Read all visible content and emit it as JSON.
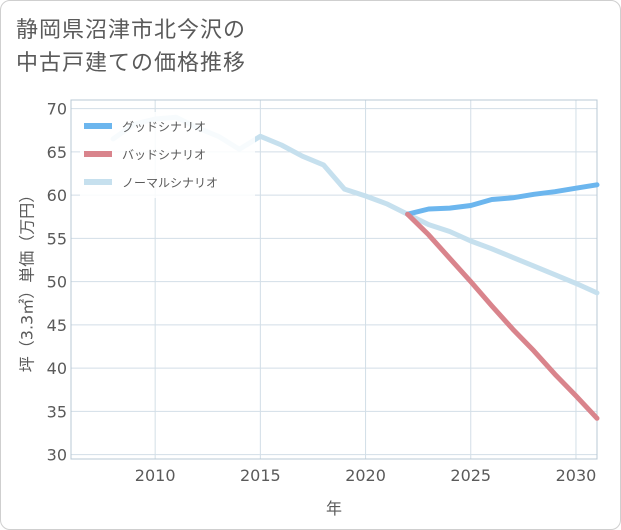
{
  "title_lines": [
    "静岡県沼津市北今沢の",
    "中古戸建ての価格推移"
  ],
  "chart_data": {
    "type": "line",
    "xlabel": "年",
    "ylabel": "坪（3.3㎡）単価（万円）",
    "xlim": [
      2006,
      2031
    ],
    "ylim": [
      29.5,
      71
    ],
    "xticks": [
      2010,
      2015,
      2020,
      2025,
      2030
    ],
    "yticks": [
      30,
      35,
      40,
      45,
      50,
      55,
      60,
      65,
      70
    ],
    "grid": true,
    "legend_position": "top-left",
    "series": [
      {
        "name": "グッドシナリオ",
        "color": "#6cb6ee",
        "x": [
          2022,
          2023,
          2024,
          2025,
          2026,
          2027,
          2028,
          2029,
          2030,
          2031
        ],
        "y": [
          57.8,
          58.4,
          58.5,
          58.8,
          59.5,
          59.7,
          60.1,
          60.4,
          60.8,
          61.2
        ]
      },
      {
        "name": "バッドシナリオ",
        "color": "#d9848c",
        "x": [
          2022,
          2023,
          2024,
          2025,
          2026,
          2027,
          2028,
          2029,
          2030,
          2031
        ],
        "y": [
          57.8,
          55.4,
          52.7,
          50.0,
          47.2,
          44.5,
          42.0,
          39.3,
          36.8,
          34.2
        ]
      },
      {
        "name": "ノーマルシナリオ",
        "color": "#c6e0ee",
        "x": [
          2008,
          2009,
          2010,
          2011,
          2012,
          2013,
          2014,
          2015,
          2016,
          2017,
          2018,
          2019,
          2020,
          2021,
          2022,
          2023,
          2024,
          2025,
          2026,
          2027,
          2028,
          2029,
          2030,
          2031
        ],
        "y": [
          66.5,
          68.2,
          68.8,
          69.0,
          67.8,
          66.8,
          65.3,
          66.8,
          65.8,
          64.5,
          63.5,
          60.7,
          59.9,
          59.0,
          57.8,
          56.6,
          55.8,
          54.7,
          53.8,
          52.8,
          51.8,
          50.8,
          49.8,
          48.7
        ]
      }
    ]
  }
}
